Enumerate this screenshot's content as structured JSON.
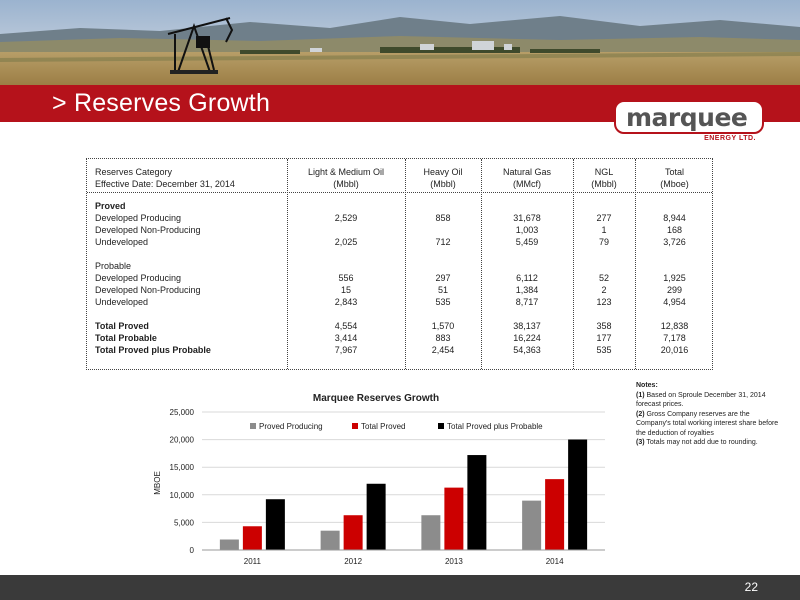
{
  "slide": {
    "title": "> Reserves Growth",
    "page_number": "22"
  },
  "logo": {
    "word": "marquee",
    "sub": "ENERGY LTD."
  },
  "table": {
    "header": {
      "line1": [
        "Reserves Category",
        "Light & Medium Oil",
        "Heavy Oil",
        "Natural Gas",
        "NGL",
        "Total"
      ],
      "line2": [
        "Effective Date: December 31, 2014",
        "(Mbbl)",
        "(Mbbl)",
        "(MMcf)",
        "(Mbbl)",
        "(Mboe)"
      ]
    },
    "rows": [
      {
        "label": "Proved",
        "values": [
          "",
          "",
          "",
          "",
          ""
        ],
        "bold": true
      },
      {
        "label": "Developed Producing",
        "values": [
          "2,529",
          "858",
          "31,678",
          "277",
          "8,944"
        ],
        "bold": false
      },
      {
        "label": "Developed Non-Producing",
        "values": [
          "",
          "",
          "1,003",
          "1",
          "168"
        ],
        "bold": false
      },
      {
        "label": "Undeveloped",
        "values": [
          "2,025",
          "712",
          "5,459",
          "79",
          "3,726"
        ],
        "bold": false
      },
      {
        "label": "",
        "values": [
          "",
          "",
          "",
          "",
          ""
        ],
        "bold": false
      },
      {
        "label": "Probable",
        "values": [
          "",
          "",
          "",
          "",
          ""
        ],
        "bold": false
      },
      {
        "label": "Developed Producing",
        "values": [
          "556",
          "297",
          "6,112",
          "52",
          "1,925"
        ],
        "bold": false
      },
      {
        "label": "Developed Non-Producing",
        "values": [
          "15",
          "51",
          "1,384",
          "2",
          "299"
        ],
        "bold": false
      },
      {
        "label": "Undeveloped",
        "values": [
          "2,843",
          "535",
          "8,717",
          "123",
          "4,954"
        ],
        "bold": false
      },
      {
        "label": "",
        "values": [
          "",
          "",
          "",
          "",
          ""
        ],
        "bold": false
      },
      {
        "label": "Total Proved",
        "values": [
          "4,554",
          "1,570",
          "38,137",
          "358",
          "12,838"
        ],
        "bold": true
      },
      {
        "label": "Total Probable",
        "values": [
          "3,414",
          "883",
          "16,224",
          "177",
          "7,178"
        ],
        "bold": true
      },
      {
        "label": "Total Proved plus Probable",
        "values": [
          "7,967",
          "2,454",
          "54,363",
          "535",
          "20,016"
        ],
        "bold": true
      }
    ]
  },
  "notes": {
    "title": "Notes:",
    "items": [
      {
        "num": "(1)",
        "text": " Based on Sproule December 31, 2014 forecast prices."
      },
      {
        "num": "(2)",
        "text": " Gross Company reserves are the Company's total working interest share before the deduction of royalties"
      },
      {
        "num": "(3)",
        "text": " Totals may not add due to rounding."
      }
    ]
  },
  "chart_data": {
    "type": "bar",
    "title": "Marquee Reserves Growth",
    "xlabel": "",
    "ylabel": "MBOE",
    "categories": [
      "2011",
      "2012",
      "2013",
      "2014"
    ],
    "series": [
      {
        "name": "Proved Producing",
        "values": [
          1900,
          3500,
          6300,
          8944
        ],
        "color": "#8c8c8c"
      },
      {
        "name": "Total Proved",
        "values": [
          4300,
          6300,
          11300,
          12838
        ],
        "color": "#cc0000"
      },
      {
        "name": "Total Proved plus Probable",
        "values": [
          9200,
          12000,
          17200,
          20016
        ],
        "color": "#000000"
      }
    ],
    "ylim": [
      0,
      25000
    ],
    "yticks": [
      "0",
      "5,000",
      "10,000",
      "15,000",
      "20,000",
      "25,000"
    ],
    "ytick_values": [
      0,
      5000,
      10000,
      15000,
      20000,
      25000
    ],
    "grid": true,
    "legend_position": "top"
  },
  "colors": {
    "brand_red": "#b5121b",
    "footer_gray": "#3a3a3a"
  }
}
